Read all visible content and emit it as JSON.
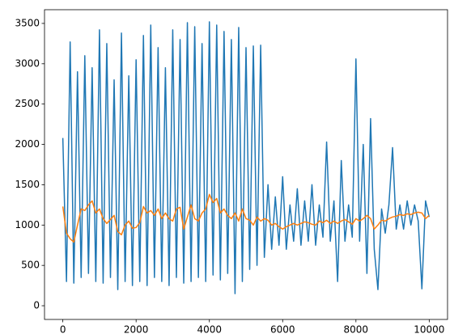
{
  "chart_data": {
    "type": "line",
    "x": [
      0,
      100,
      200,
      300,
      400,
      500,
      600,
      700,
      800,
      900,
      1000,
      1100,
      1200,
      1300,
      1400,
      1500,
      1600,
      1700,
      1800,
      1900,
      2000,
      2100,
      2200,
      2300,
      2400,
      2500,
      2600,
      2700,
      2800,
      2900,
      3000,
      3100,
      3200,
      3300,
      3400,
      3500,
      3600,
      3700,
      3800,
      3900,
      4000,
      4100,
      4200,
      4300,
      4400,
      4500,
      4600,
      4700,
      4800,
      4900,
      5000,
      5100,
      5200,
      5300,
      5400,
      5500,
      5600,
      5700,
      5800,
      5900,
      6000,
      6100,
      6200,
      6300,
      6400,
      6500,
      6600,
      6700,
      6800,
      6900,
      7000,
      7100,
      7200,
      7300,
      7400,
      7500,
      7600,
      7700,
      7800,
      7900,
      8000,
      8100,
      8200,
      8300,
      8400,
      8500,
      8600,
      8700,
      8800,
      8900,
      9000,
      9100,
      9200,
      9300,
      9400,
      9500,
      9600,
      9700,
      9800,
      9900,
      10000
    ],
    "series": [
      {
        "color": "#1f77b4",
        "values": [
          2080,
          300,
          3270,
          280,
          2900,
          350,
          3100,
          400,
          2950,
          300,
          3420,
          280,
          3250,
          350,
          2800,
          200,
          3380,
          300,
          2850,
          250,
          3050,
          300,
          3350,
          250,
          3480,
          350,
          3200,
          300,
          2950,
          250,
          3420,
          350,
          3300,
          280,
          3510,
          300,
          3460,
          350,
          3250,
          300,
          3520,
          380,
          3480,
          320,
          3400,
          400,
          3300,
          150,
          3450,
          300,
          3200,
          450,
          3220,
          500,
          3230,
          600,
          1500,
          700,
          1350,
          750,
          1600,
          700,
          1250,
          800,
          1450,
          750,
          1300,
          800,
          1500,
          750,
          1250,
          850,
          2030,
          800,
          1300,
          300,
          1800,
          800,
          1250,
          850,
          3060,
          800,
          2000,
          400,
          2320,
          700,
          200,
          1200,
          900,
          1250,
          1960,
          950,
          1250,
          950,
          1300,
          1000,
          1250,
          1050,
          210,
          1300,
          1100
        ]
      },
      {
        "color": "#ff7f0e",
        "values": [
          1230,
          900,
          830,
          790,
          1000,
          1200,
          1180,
          1250,
          1300,
          1150,
          1200,
          1080,
          1020,
          1070,
          1120,
          920,
          880,
          1000,
          1050,
          960,
          970,
          1030,
          1230,
          1150,
          1180,
          1120,
          1200,
          1080,
          1150,
          1080,
          1050,
          1200,
          1220,
          950,
          1100,
          1250,
          1080,
          1050,
          1150,
          1200,
          1380,
          1280,
          1330,
          1150,
          1200,
          1120,
          1080,
          1150,
          1050,
          1200,
          1080,
          1060,
          1000,
          1100,
          1050,
          1080,
          1060,
          1000,
          1020,
          980,
          950,
          980,
          1000,
          1020,
          1000,
          1020,
          1040,
          1030,
          1010,
          1000,
          1050,
          1030,
          1060,
          1020,
          1050,
          1020,
          1050,
          1070,
          1040,
          1010,
          1080,
          1050,
          1080,
          1120,
          1080,
          950,
          1000,
          1060,
          1050,
          1080,
          1100,
          1110,
          1130,
          1120,
          1140,
          1130,
          1150,
          1160,
          1150,
          1080,
          1120
        ]
      }
    ],
    "xlim": [
      -500,
      10500
    ],
    "ylim": [
      -170,
      3670
    ],
    "xticks": [
      0,
      2000,
      4000,
      6000,
      8000,
      10000
    ],
    "yticks": [
      0,
      500,
      1000,
      1500,
      2000,
      2500,
      3000,
      3500
    ]
  }
}
